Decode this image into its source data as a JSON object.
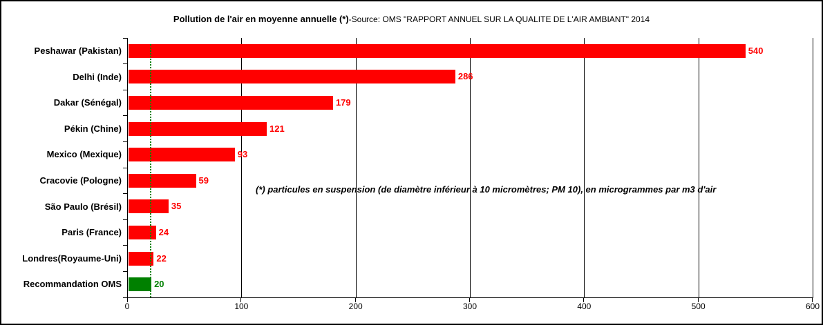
{
  "title": {
    "main": "Pollution de l'air en moyenne annuelle (*)",
    "source": "-Source: OMS \"RAPPORT ANNUEL SUR LA QUALITE DE L'AIR AMBIANT\" 2014"
  },
  "annotation": "(*) particules en suspension (de diamètre inférieur à 10 micromètres; PM 10), en microgrammes par m3 d'air",
  "chart_data": {
    "type": "bar",
    "orientation": "horizontal",
    "title": "Pollution de l'air en moyenne annuelle (*)-Source: OMS \"RAPPORT ANNUEL SUR LA QUALITE DE L'AIR AMBIANT\" 2014",
    "categories": [
      "Peshawar (Pakistan)",
      "Delhi (Inde)",
      "Dakar (Sénégal)",
      "Pékin (Chine)",
      "Mexico (Mexique)",
      "Cracovie (Pologne)",
      "São Paulo (Brésil)",
      "Paris (France)",
      "Londres(Royaume-Uni)",
      "Recommandation OMS"
    ],
    "values": [
      540,
      286,
      179,
      121,
      93,
      59,
      35,
      24,
      22,
      20
    ],
    "bar_colors": [
      "#FF0000",
      "#FF0000",
      "#FF0000",
      "#FF0000",
      "#FF0000",
      "#FF0000",
      "#FF0000",
      "#FF0000",
      "#FF0000",
      "#008000"
    ],
    "value_label_colors": [
      "#FF0000",
      "#FF0000",
      "#FF0000",
      "#FF0000",
      "#FF0000",
      "#FF0000",
      "#FF0000",
      "#FF0000",
      "#FF0000",
      "#008000"
    ],
    "xlim": [
      0,
      600
    ],
    "xticks": [
      0,
      100,
      200,
      300,
      400,
      500,
      600
    ],
    "xlabel": "",
    "ylabel": "",
    "grid": "vertical",
    "grid_color": "#000000",
    "legend": "none",
    "reference_line": {
      "value": 20,
      "color": "#008000",
      "style": "dotted"
    },
    "unit": "microgrammes par m3 d'air (PM 10)"
  }
}
